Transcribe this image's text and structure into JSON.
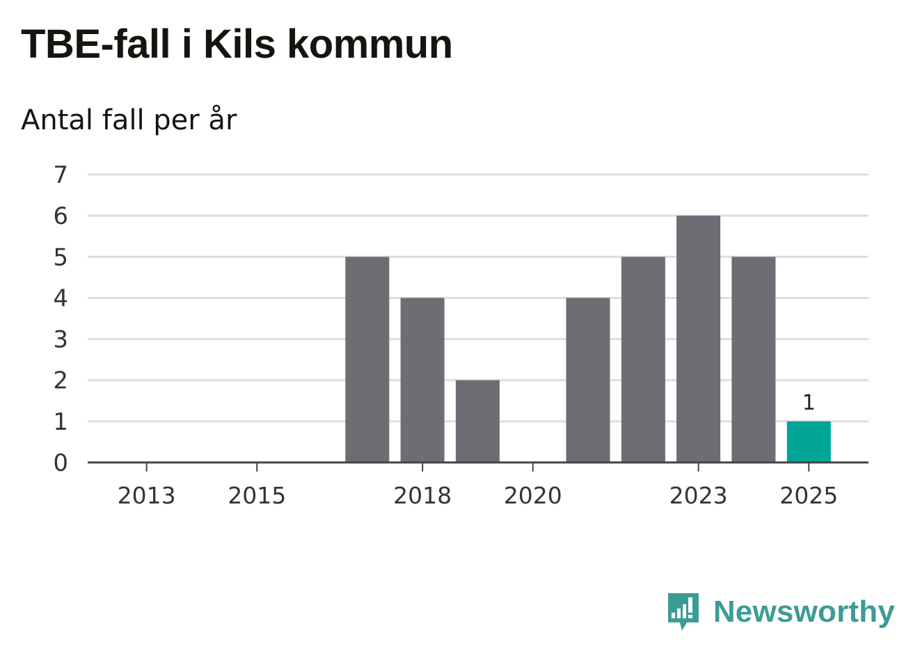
{
  "brand": {
    "name": "Newsworthy",
    "color": "#3d9b96",
    "icon": "newsworthy-logo-icon"
  },
  "colors": {
    "bar": "#6e6d73",
    "highlight": "#00a597",
    "grid": "#dddddd",
    "axis": "#444444"
  },
  "chart_data": {
    "type": "bar",
    "title": "TBE-fall i Kils kommun",
    "subtitle": "Antal fall per år",
    "xlabel": "",
    "ylabel": "",
    "categories": [
      "2013",
      "2014",
      "2015",
      "2016",
      "2017",
      "2018",
      "2019",
      "2020",
      "2021",
      "2022",
      "2023",
      "2024",
      "2025"
    ],
    "values": [
      0,
      0,
      0,
      0,
      5,
      4,
      2,
      0,
      4,
      5,
      6,
      5,
      1
    ],
    "highlight_index": 12,
    "data_labels": [
      {
        "index": 12,
        "text": "1"
      }
    ],
    "x_tick_labels": [
      "2013",
      "2015",
      "2018",
      "2020",
      "2023",
      "2025"
    ],
    "y_ticks": [
      0,
      1,
      2,
      3,
      4,
      5,
      6,
      7
    ],
    "ylim": [
      0,
      7
    ],
    "grid": true,
    "legend": "none"
  }
}
